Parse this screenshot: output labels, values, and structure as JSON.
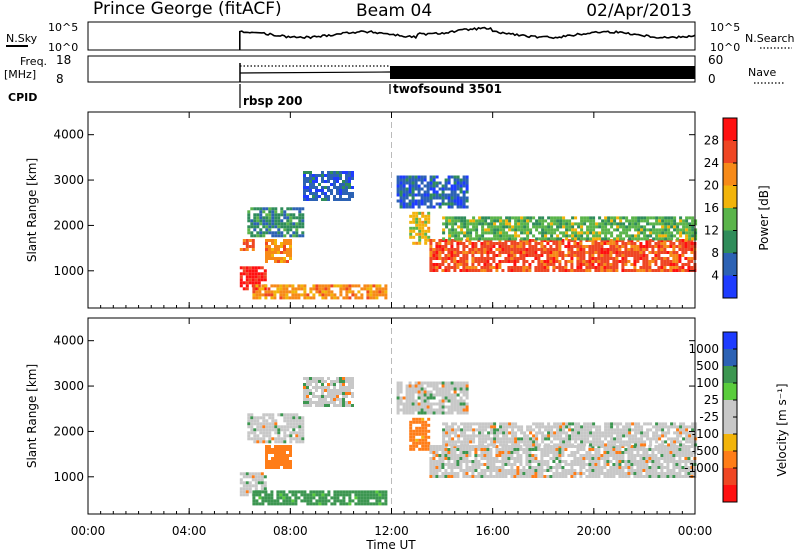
{
  "header": {
    "station": "Prince George (fitACF)",
    "beam": "Beam 04",
    "date": "02/Apr/2013"
  },
  "summary": {
    "nsky_label": "N.Sky",
    "nsky_ticks": [
      "10^5",
      "10^0"
    ],
    "nsearch_label": "N.Search",
    "nsearch_ticks": [
      "10^5",
      "10^0"
    ],
    "freq_label_1": "Freq.",
    "freq_label_2": "[MHz]",
    "freq_ticks": [
      "18",
      "8"
    ],
    "nave_label": "Nave",
    "nave_ticks": [
      "60",
      "0"
    ],
    "cpid_label": "CPID",
    "cpid_segments": [
      {
        "label": "rbsp 200",
        "start_hour": 6.0
      },
      {
        "label": "twofsound 3501",
        "start_hour": 12.0
      }
    ]
  },
  "colors": {
    "power_scale": [
      "#1e3cff",
      "#2c62b4",
      "#2f8c5a",
      "#5ab44a",
      "#f2b40a",
      "#f78a18",
      "#ef4623",
      "#ff1010"
    ],
    "velocity_scale": [
      "#ff1010",
      "#ef4623",
      "#ff7d18",
      "#f2b40a",
      "#c8c8c8",
      "#c8c8c8",
      "#5acd3c",
      "#3c9650",
      "#2c62b4",
      "#1e3cff"
    ]
  },
  "chart_data": [
    {
      "type": "heatmap",
      "name": "power",
      "xlabel": "",
      "ylabel": "Slant Range [km]",
      "colorbar_label": "Power [dB]",
      "colorbar_ticks": [
        "28",
        "24",
        "20",
        "16",
        "12",
        "8",
        "4"
      ],
      "colorbar_range": [
        0,
        32
      ],
      "xlim": [
        0,
        24
      ],
      "ylim": [
        180,
        4500
      ],
      "yticks": [
        "4000",
        "3000",
        "2000",
        "1000"
      ],
      "ytick_values": [
        4000,
        3000,
        2000,
        1000
      ],
      "regions": [
        {
          "t": [
            6.0,
            7.0
          ],
          "r": [
            600,
            1100
          ],
          "level": 7
        },
        {
          "t": [
            6.0,
            6.5
          ],
          "r": [
            1500,
            1700
          ],
          "level": 6
        },
        {
          "t": [
            7.0,
            8.0
          ],
          "r": [
            1200,
            1700
          ],
          "level": 5
        },
        {
          "t": [
            6.5,
            11.8
          ],
          "r": [
            400,
            700
          ],
          "level": 5
        },
        {
          "t": [
            6.3,
            8.5
          ],
          "r": [
            1800,
            2400
          ],
          "level": 2
        },
        {
          "t": [
            8.5,
            10.5
          ],
          "r": [
            2600,
            3200
          ],
          "level": 1
        },
        {
          "t": [
            12.7,
            13.5
          ],
          "r": [
            1600,
            2300
          ],
          "level": 4
        },
        {
          "t": [
            13.5,
            24.0
          ],
          "r": [
            1000,
            1700
          ],
          "level": 6
        },
        {
          "t": [
            14.0,
            24.0
          ],
          "r": [
            1700,
            2200
          ],
          "level": 3
        },
        {
          "t": [
            12.2,
            15.0
          ],
          "r": [
            2400,
            3100
          ],
          "level": 1
        }
      ]
    },
    {
      "type": "heatmap",
      "name": "velocity",
      "xlabel": "Time UT",
      "ylabel": "Slant Range [km]",
      "colorbar_label": "Velocity [m s⁻¹]",
      "colorbar_ticks": [
        "1000",
        "500",
        "100",
        "25",
        "-25",
        "-100",
        "-500",
        "-1000"
      ],
      "colorbar_range": [
        -1200,
        1200
      ],
      "xlim": [
        0,
        24
      ],
      "ylim": [
        180,
        4500
      ],
      "xticks": [
        "00:00",
        "04:00",
        "08:00",
        "12:00",
        "16:00",
        "20:00",
        "00:00"
      ],
      "xtick_values": [
        0,
        4,
        8,
        12,
        16,
        20,
        24
      ],
      "yticks": [
        "4000",
        "3000",
        "2000",
        "1000"
      ],
      "ytick_values": [
        4000,
        3000,
        2000,
        1000
      ],
      "regions": [
        {
          "t": [
            6.0,
            7.0
          ],
          "r": [
            600,
            1100
          ],
          "v": 0
        },
        {
          "t": [
            7.0,
            8.0
          ],
          "r": [
            1200,
            1700
          ],
          "v": -300
        },
        {
          "t": [
            6.5,
            11.8
          ],
          "r": [
            400,
            700
          ],
          "v": 150
        },
        {
          "t": [
            6.3,
            8.5
          ],
          "r": [
            1800,
            2400
          ],
          "v": 0
        },
        {
          "t": [
            8.5,
            10.5
          ],
          "r": [
            2600,
            3200
          ],
          "v": 0
        },
        {
          "t": [
            12.7,
            13.5
          ],
          "r": [
            1600,
            2300
          ],
          "v": -200
        },
        {
          "t": [
            13.5,
            24.0
          ],
          "r": [
            1000,
            1700
          ],
          "v": 0
        },
        {
          "t": [
            14.0,
            24.0
          ],
          "r": [
            1700,
            2200
          ],
          "v": 0
        },
        {
          "t": [
            12.2,
            15.0
          ],
          "r": [
            2400,
            3100
          ],
          "v": 0
        }
      ]
    }
  ]
}
